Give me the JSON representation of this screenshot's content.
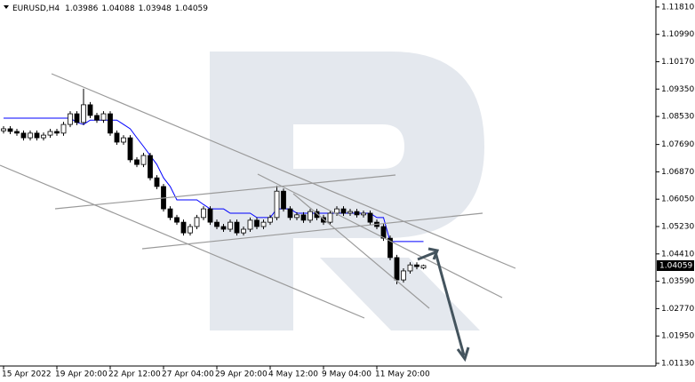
{
  "chart_data": {
    "type": "candlestick",
    "title": "EURUSD,H4",
    "categories": [
      "15 Apr 2022",
      null,
      null,
      null,
      null,
      null,
      null,
      null,
      "19 Apr 20:00",
      null,
      null,
      null,
      null,
      null,
      null,
      null,
      "22 Apr 12:00",
      null,
      null,
      null,
      null,
      null,
      null,
      null,
      "27 Apr 04:00",
      null,
      null,
      null,
      null,
      null,
      null,
      null,
      "29 Apr 20:00",
      null,
      null,
      null,
      null,
      null,
      null,
      null,
      "4 May 12:00",
      null,
      null,
      null,
      null,
      null,
      null,
      null,
      "9 May 04:00",
      null,
      null,
      null,
      null,
      null,
      null,
      null,
      "11 May 20:00",
      null,
      null,
      null,
      null,
      null,
      null,
      null
    ],
    "open": [
      1.081,
      1.0816,
      1.0808,
      1.0803,
      1.0789,
      1.0803,
      1.0789,
      1.0797,
      1.0808,
      1.0803,
      1.0829,
      1.0861,
      1.0835,
      1.0888,
      1.0856,
      1.0842,
      1.0861,
      1.0803,
      1.0776,
      1.0789,
      1.0723,
      1.0709,
      1.0736,
      1.0669,
      1.0643,
      1.0576,
      1.055,
      1.0536,
      1.0504,
      1.0523,
      1.055,
      1.0576,
      1.0536,
      1.0523,
      1.0515,
      1.0536,
      1.0504,
      1.0515,
      1.0542,
      1.0523,
      1.0536,
      1.055,
      1.0629,
      1.0576,
      1.055,
      1.0558,
      1.0542,
      1.0568,
      1.055,
      1.0536,
      1.0563,
      1.0576,
      1.0563,
      1.0568,
      1.0558,
      1.0563,
      1.0536,
      1.0523,
      1.0488,
      1.043,
      1.0363,
      1.039,
      1.0408,
      1.03986
    ],
    "high": [
      1.0824,
      1.0824,
      1.0816,
      1.0811,
      1.0811,
      1.0811,
      1.0805,
      1.0816,
      1.0816,
      1.0837,
      1.0869,
      1.0869,
      1.0936,
      1.0896,
      1.0864,
      1.0869,
      1.0869,
      1.0811,
      1.0797,
      1.0797,
      1.0731,
      1.0744,
      1.0744,
      1.0677,
      1.0651,
      1.0584,
      1.0558,
      1.0544,
      1.0531,
      1.0558,
      1.0584,
      1.0584,
      1.0544,
      1.0531,
      1.0544,
      1.0544,
      1.0523,
      1.055,
      1.055,
      1.0544,
      1.0558,
      1.0645,
      1.0637,
      1.0584,
      1.0566,
      1.0566,
      1.0576,
      1.0576,
      1.0558,
      1.0571,
      1.0584,
      1.0584,
      1.0576,
      1.0576,
      1.0571,
      1.0571,
      1.0544,
      1.0531,
      1.0496,
      1.0438,
      1.0398,
      1.0416,
      1.0416,
      1.04088
    ],
    "low": [
      1.0802,
      1.08,
      1.0795,
      1.0781,
      1.0781,
      1.0781,
      1.0781,
      1.0789,
      1.0795,
      1.0795,
      1.0821,
      1.0827,
      1.0827,
      1.0848,
      1.0834,
      1.0834,
      1.0795,
      1.0768,
      1.0768,
      1.0715,
      1.0701,
      1.0701,
      1.0661,
      1.0635,
      1.0568,
      1.0542,
      1.0528,
      1.0496,
      1.0496,
      1.0515,
      1.0542,
      1.0528,
      1.0515,
      1.0507,
      1.0507,
      1.0496,
      1.0496,
      1.0507,
      1.0515,
      1.0515,
      1.0528,
      1.0542,
      1.0568,
      1.0542,
      1.0542,
      1.0534,
      1.0534,
      1.0542,
      1.0528,
      1.0528,
      1.0555,
      1.0555,
      1.0555,
      1.055,
      1.055,
      1.0528,
      1.0515,
      1.048,
      1.0422,
      1.035,
      1.0355,
      1.0382,
      1.0395,
      1.03948
    ],
    "close": [
      1.0816,
      1.0808,
      1.0803,
      1.0789,
      1.0803,
      1.0789,
      1.0797,
      1.0808,
      1.0803,
      1.0829,
      1.0861,
      1.0835,
      1.0888,
      1.0856,
      1.0842,
      1.0861,
      1.0803,
      1.0776,
      1.0789,
      1.0723,
      1.0709,
      1.0736,
      1.0669,
      1.0643,
      1.0576,
      1.055,
      1.0536,
      1.0504,
      1.0523,
      1.055,
      1.0576,
      1.0536,
      1.0523,
      1.0515,
      1.0536,
      1.0504,
      1.0515,
      1.0542,
      1.0523,
      1.0536,
      1.055,
      1.0629,
      1.0576,
      1.055,
      1.0558,
      1.0542,
      1.0568,
      1.055,
      1.0536,
      1.0563,
      1.0576,
      1.0563,
      1.0568,
      1.0558,
      1.0563,
      1.0536,
      1.0523,
      1.0488,
      1.043,
      1.0363,
      1.039,
      1.0408,
      1.0403,
      1.04059
    ],
    "up_color": "#ffffff",
    "down_color": "#000000",
    "series": [
      {
        "color": "#0000ff",
        "values": [
          1.0848,
          1.0848,
          1.0848,
          1.0848,
          1.0848,
          1.0848,
          1.0848,
          1.0848,
          1.0848,
          1.0848,
          1.0848,
          1.0835,
          1.0829,
          1.0842,
          1.0842,
          1.0842,
          1.0842,
          1.0842,
          1.0829,
          1.0816,
          1.0789,
          1.0763,
          1.0736,
          1.0709,
          1.0669,
          1.0643,
          1.0603,
          1.0603,
          1.0603,
          1.0603,
          1.0589,
          1.0576,
          1.0576,
          1.0576,
          1.0563,
          1.0563,
          1.0563,
          1.0563,
          1.055,
          1.055,
          1.055,
          1.0576,
          1.0576,
          1.0576,
          1.0563,
          1.0563,
          1.0563,
          1.0563,
          1.0563,
          1.0563,
          1.0563,
          1.0563,
          1.0563,
          1.0563,
          1.0563,
          1.0563,
          1.055,
          1.055,
          1.0478,
          1.0478,
          1.0478,
          1.0478,
          1.0478,
          1.0478
        ]
      }
    ],
    "ylim": [
      1.0105,
      1.1202
    ],
    "yticks": [
      {
        "value": 1.1181,
        "label": "1.11810"
      },
      {
        "value": 1.1099,
        "label": "1.10990"
      },
      {
        "value": 1.1017,
        "label": "1.10170"
      },
      {
        "value": 1.0935,
        "label": "1.09350"
      },
      {
        "value": 1.0853,
        "label": "1.08530"
      },
      {
        "value": 1.0769,
        "label": "1.07690"
      },
      {
        "value": 1.0687,
        "label": "1.06870"
      },
      {
        "value": 1.0605,
        "label": "1.06050"
      },
      {
        "value": 1.0523,
        "label": "1.05230"
      },
      {
        "value": 1.0441,
        "label": "1.04410"
      },
      {
        "value": 1.0359,
        "label": "1.03590"
      },
      {
        "value": 1.0277,
        "label": "1.02770"
      },
      {
        "value": 1.0195,
        "label": "1.01950"
      },
      {
        "value": 1.0113,
        "label": "1.01130"
      }
    ]
  }
}
